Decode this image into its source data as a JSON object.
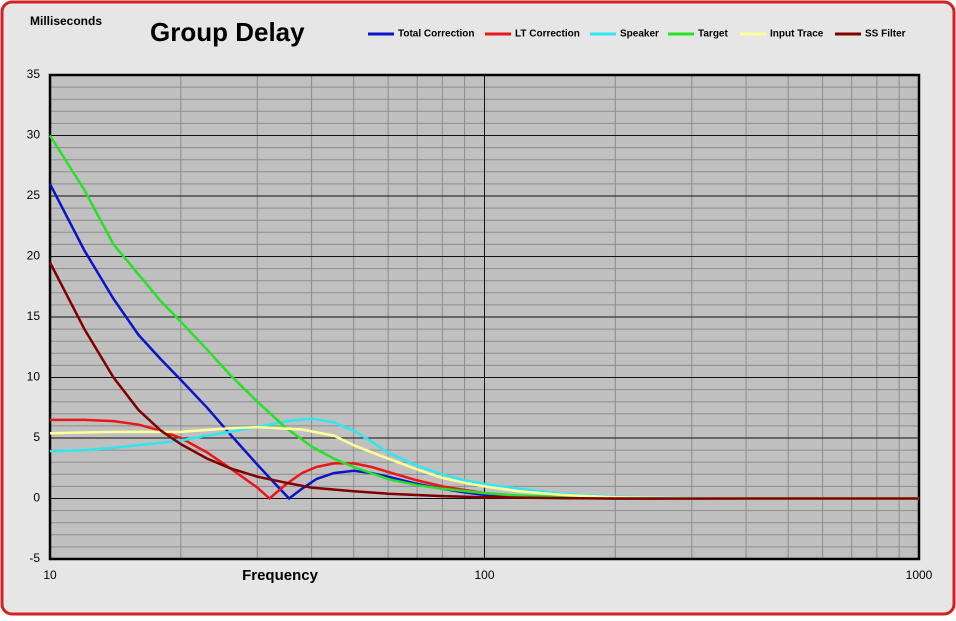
{
  "chart_data": {
    "type": "line",
    "title": "Group Delay",
    "y_label": "Milliseconds",
    "x_label": "Frequency",
    "log_x": true,
    "grid": true,
    "xlim": [
      10,
      1000
    ],
    "xticks": [
      10,
      100,
      1000
    ],
    "ylim": [
      -5,
      35
    ],
    "yticks": [
      -5,
      0,
      5,
      10,
      15,
      20,
      25,
      30,
      35
    ],
    "series": [
      {
        "name": "Total Correction",
        "color": "#0a14c8",
        "x": [
          10,
          12,
          14,
          16,
          18,
          20,
          23,
          26,
          30,
          33,
          35.5,
          38,
          41,
          45,
          50,
          55,
          60,
          70,
          80,
          90,
          100,
          120,
          150,
          200,
          1000
        ],
        "values": [
          26,
          20.5,
          16.5,
          13.5,
          11.5,
          9.8,
          7.5,
          5.3,
          2.8,
          1.2,
          0,
          0.8,
          1.6,
          2.1,
          2.3,
          2.1,
          1.8,
          1.2,
          0.8,
          0.5,
          0.3,
          0.15,
          0.05,
          0,
          0
        ]
      },
      {
        "name": "LT Correction",
        "color": "#e81818",
        "x": [
          10,
          12,
          14,
          16,
          18,
          20,
          23,
          26,
          30,
          32,
          35,
          38,
          41,
          45,
          50,
          55,
          60,
          70,
          80,
          90,
          100,
          120,
          150,
          200,
          300,
          1000
        ],
        "values": [
          6.5,
          6.5,
          6.4,
          6.1,
          5.6,
          5,
          3.8,
          2.5,
          0.9,
          0,
          1.2,
          2.1,
          2.6,
          2.9,
          2.9,
          2.6,
          2.2,
          1.5,
          1,
          0.7,
          0.45,
          0.2,
          0.08,
          0.02,
          0,
          0
        ]
      },
      {
        "name": "Speaker",
        "color": "#30e6f0",
        "x": [
          10,
          12,
          14,
          16,
          18,
          20,
          23,
          26,
          30,
          35,
          40,
          45,
          50,
          55,
          60,
          70,
          80,
          90,
          100,
          120,
          150,
          200,
          300,
          500,
          1000
        ],
        "values": [
          3.9,
          4,
          4.2,
          4.4,
          4.6,
          4.8,
          5.2,
          5.5,
          5.9,
          6.4,
          6.6,
          6.3,
          5.6,
          4.7,
          3.8,
          2.7,
          2,
          1.5,
          1.2,
          0.8,
          0.4,
          0.15,
          0.03,
          0,
          0
        ]
      },
      {
        "name": "Target",
        "color": "#28e028",
        "x": [
          10,
          12,
          14,
          16,
          18,
          20,
          23,
          26,
          30,
          35,
          40,
          45,
          50,
          60,
          70,
          80,
          100,
          120,
          150,
          200,
          300,
          1000
        ],
        "values": [
          30,
          25.5,
          21,
          18.5,
          16.3,
          14.6,
          12.3,
          10.2,
          8,
          5.8,
          4.3,
          3.3,
          2.6,
          1.6,
          1.1,
          0.8,
          0.45,
          0.25,
          0.12,
          0.04,
          0,
          0
        ]
      },
      {
        "name": "Input Trace",
        "color": "#ffff9a",
        "x": [
          10,
          14,
          20,
          26,
          30,
          38,
          45,
          50,
          60,
          70,
          80,
          90,
          100,
          120,
          150,
          200,
          300,
          500,
          1000
        ],
        "values": [
          5.4,
          5.5,
          5.5,
          5.8,
          5.9,
          5.7,
          5.2,
          4.4,
          3.3,
          2.4,
          1.7,
          1.3,
          1,
          0.6,
          0.3,
          0.1,
          0.02,
          0,
          0
        ]
      },
      {
        "name": "SS Filter",
        "color": "#800000",
        "x": [
          10,
          12,
          14,
          16,
          18,
          20,
          23,
          26,
          30,
          35,
          40,
          50,
          60,
          80,
          100,
          150,
          200,
          1000
        ],
        "values": [
          19.5,
          14,
          10,
          7.3,
          5.6,
          4.5,
          3.3,
          2.5,
          1.8,
          1.3,
          0.9,
          0.6,
          0.4,
          0.2,
          0.1,
          0.03,
          0,
          0
        ]
      }
    ]
  }
}
